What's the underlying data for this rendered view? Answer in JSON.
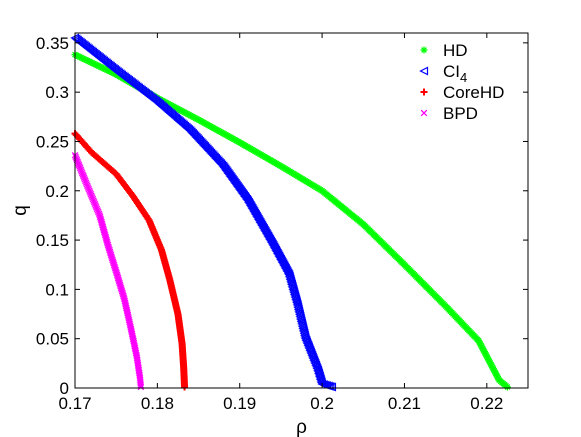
{
  "chart_data": {
    "type": "scatter",
    "xlabel": "ρ",
    "ylabel": "q",
    "xlim": [
      0.17,
      0.225
    ],
    "ylim": [
      0,
      0.36
    ],
    "xticks": [
      "0.17",
      "0.18",
      "0.19",
      "0.2",
      "0.21",
      "0.22"
    ],
    "yticks": [
      "0",
      "0.05",
      "0.1",
      "0.15",
      "0.2",
      "0.25",
      "0.3",
      "0.35"
    ],
    "legend_position": "top-right",
    "series": [
      {
        "name": "HD",
        "marker": "asterisk",
        "color": "#00ff00",
        "points": [
          [
            0.17,
            0.338
          ],
          [
            0.175,
            0.318
          ],
          [
            0.18,
            0.294
          ],
          [
            0.185,
            0.272
          ],
          [
            0.19,
            0.249
          ],
          [
            0.195,
            0.225
          ],
          [
            0.2,
            0.2
          ],
          [
            0.205,
            0.166
          ],
          [
            0.21,
            0.125
          ],
          [
            0.215,
            0.083
          ],
          [
            0.219,
            0.048
          ],
          [
            0.2215,
            0.008
          ],
          [
            0.2225,
            0.001
          ]
        ]
      },
      {
        "name": "CI",
        "name_subscript": "4",
        "marker": "triangle-left",
        "color": "#0000ff",
        "points": [
          [
            0.17,
            0.355
          ],
          [
            0.175,
            0.322
          ],
          [
            0.18,
            0.29
          ],
          [
            0.184,
            0.261
          ],
          [
            0.188,
            0.225
          ],
          [
            0.191,
            0.19
          ],
          [
            0.194,
            0.146
          ],
          [
            0.196,
            0.115
          ],
          [
            0.197,
            0.085
          ],
          [
            0.198,
            0.05
          ],
          [
            0.1995,
            0.018
          ],
          [
            0.2,
            0.004
          ],
          [
            0.2012,
            0.001
          ]
        ]
      },
      {
        "name": "CoreHD",
        "marker": "plus",
        "color": "#ff0000",
        "points": [
          [
            0.17,
            0.258
          ],
          [
            0.172,
            0.239
          ],
          [
            0.175,
            0.217
          ],
          [
            0.177,
            0.195
          ],
          [
            0.179,
            0.17
          ],
          [
            0.1805,
            0.14
          ],
          [
            0.1815,
            0.11
          ],
          [
            0.1825,
            0.075
          ],
          [
            0.183,
            0.045
          ],
          [
            0.1832,
            0.02
          ],
          [
            0.1833,
            0.001
          ]
        ]
      },
      {
        "name": "BPD",
        "marker": "cross",
        "color": "#ff00ff",
        "points": [
          [
            0.17,
            0.236
          ],
          [
            0.1715,
            0.205
          ],
          [
            0.173,
            0.175
          ],
          [
            0.174,
            0.145
          ],
          [
            0.175,
            0.118
          ],
          [
            0.176,
            0.09
          ],
          [
            0.1768,
            0.06
          ],
          [
            0.1775,
            0.032
          ],
          [
            0.1779,
            0.01
          ],
          [
            0.178,
            0.001
          ]
        ]
      }
    ]
  }
}
